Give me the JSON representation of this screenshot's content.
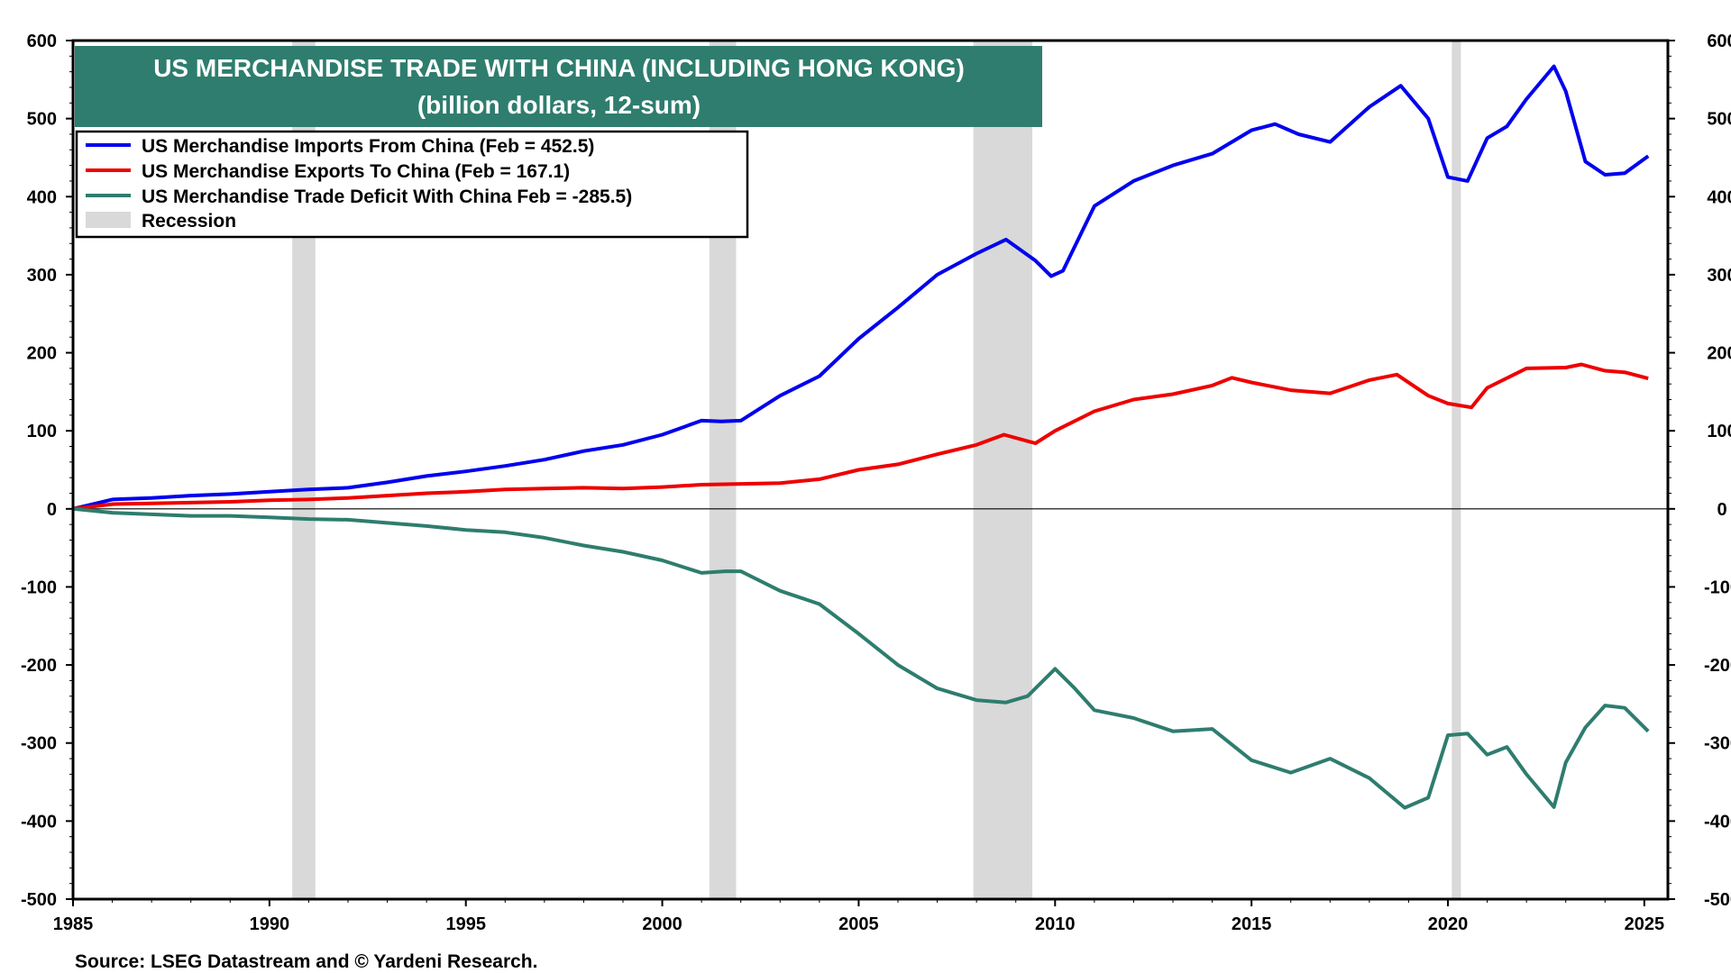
{
  "colors": {
    "imports": "#0000ee",
    "exports": "#ee0000",
    "deficit": "#2e7d6e",
    "recession": "#d9d9d9",
    "title_bg": "#2e7d6e"
  },
  "chart_data": {
    "type": "line",
    "title": "US MERCHANDISE TRADE WITH CHINA (INCLUDING HONG KONG)",
    "subtitle": "(billion dollars, 12-sum)",
    "xlim": [
      1985,
      2025.6
    ],
    "ylim": [
      -500,
      600
    ],
    "y_ticks": [
      600,
      500,
      400,
      300,
      200,
      100,
      0,
      -100,
      -200,
      -300,
      -400,
      -500
    ],
    "x_ticks": [
      1985,
      1990,
      1995,
      2000,
      2005,
      2010,
      2015,
      2020,
      2025
    ],
    "axes": "left and right y-axis, mirrored",
    "zero_line": true,
    "grid": false,
    "legend_position": "top-left",
    "recessions": [
      [
        1990.58,
        1991.17
      ],
      [
        2001.2,
        2001.88
      ],
      [
        2007.92,
        2009.42
      ],
      [
        2020.1,
        2020.33
      ]
    ],
    "legend": [
      "US Merchandise Imports From China (Feb = 452.5)",
      "US Merchandise Exports To China (Feb = 167.1)",
      "US Merchandise Trade Deficit With China  Feb = -285.5)",
      "Recession"
    ],
    "series": [
      {
        "name": "US Merchandise Imports From China",
        "x": [
          1985,
          1986,
          1987,
          1988,
          1989,
          1990,
          1991,
          1992,
          1993,
          1994,
          1995,
          1996,
          1997,
          1998,
          1999,
          2000,
          2001,
          2001.5,
          2002,
          2003,
          2004,
          2005,
          2006,
          2007,
          2008,
          2008.75,
          2009.5,
          2009.9,
          2010.2,
          2011,
          2012,
          2013,
          2014,
          2015,
          2015.6,
          2016.2,
          2017,
          2018,
          2018.8,
          2019.5,
          2020,
          2020.5,
          2021,
          2021.5,
          2022,
          2022.7,
          2023,
          2023.5,
          2024,
          2024.5,
          2025.1
        ],
        "values": [
          0,
          12,
          14,
          17,
          19,
          22,
          25,
          27,
          34,
          42,
          48,
          55,
          63,
          74,
          82,
          95,
          113,
          112,
          113,
          145,
          170,
          218,
          258,
          300,
          327,
          345,
          318,
          298,
          305,
          388,
          420,
          440,
          455,
          485,
          493,
          480,
          470,
          515,
          542,
          500,
          425,
          420,
          475,
          490,
          525,
          567,
          535,
          445,
          428,
          430,
          452
        ]
      },
      {
        "name": "US Merchandise Exports To China",
        "x": [
          1985,
          1986,
          1987,
          1988,
          1989,
          1990,
          1991,
          1992,
          1993,
          1994,
          1995,
          1996,
          1997,
          1998,
          1999,
          2000,
          2001,
          2002,
          2003,
          2004,
          2005,
          2006,
          2007,
          2008,
          2008.7,
          2009.5,
          2010,
          2011,
          2012,
          2013,
          2014,
          2014.5,
          2015,
          2016,
          2017,
          2018,
          2018.7,
          2019.5,
          2020,
          2020.6,
          2021,
          2022,
          2023,
          2023.4,
          2024,
          2024.5,
          2025.1
        ],
        "values": [
          0,
          6,
          7,
          8,
          9,
          11,
          12,
          14,
          17,
          20,
          22,
          25,
          26,
          27,
          26,
          28,
          31,
          32,
          33,
          38,
          50,
          57,
          70,
          82,
          95,
          84,
          100,
          125,
          140,
          147,
          158,
          168,
          162,
          152,
          148,
          165,
          172,
          145,
          135,
          130,
          155,
          180,
          181,
          185,
          177,
          175,
          167
        ]
      },
      {
        "name": "US Merchandise Trade Deficit With China",
        "x": [
          1985,
          1986,
          1987,
          1988,
          1989,
          1990,
          1991,
          1992,
          1993,
          1994,
          1995,
          1996,
          1997,
          1998,
          1999,
          2000,
          2001,
          2001.6,
          2002,
          2003,
          2004,
          2005,
          2006,
          2007,
          2008,
          2008.75,
          2009.3,
          2010,
          2010.5,
          2011,
          2012,
          2013,
          2014,
          2015,
          2016,
          2017,
          2018,
          2018.9,
          2019.5,
          2020,
          2020.5,
          2021,
          2021.5,
          2022,
          2022.7,
          2023,
          2023.5,
          2024,
          2024.5,
          2025.1
        ],
        "values": [
          0,
          -5,
          -7,
          -9,
          -9,
          -11,
          -13,
          -14,
          -18,
          -22,
          -27,
          -30,
          -37,
          -47,
          -55,
          -66,
          -82,
          -80,
          -80,
          -105,
          -122,
          -160,
          -200,
          -230,
          -245,
          -248,
          -240,
          -205,
          -230,
          -258,
          -268,
          -285,
          -282,
          -322,
          -338,
          -320,
          -345,
          -383,
          -370,
          -290,
          -288,
          -315,
          -305,
          -340,
          -382,
          -325,
          -280,
          -252,
          -255,
          -285
        ]
      }
    ]
  },
  "labels": {
    "source": "Source: LSEG Datastream and © Yardeni Research."
  }
}
